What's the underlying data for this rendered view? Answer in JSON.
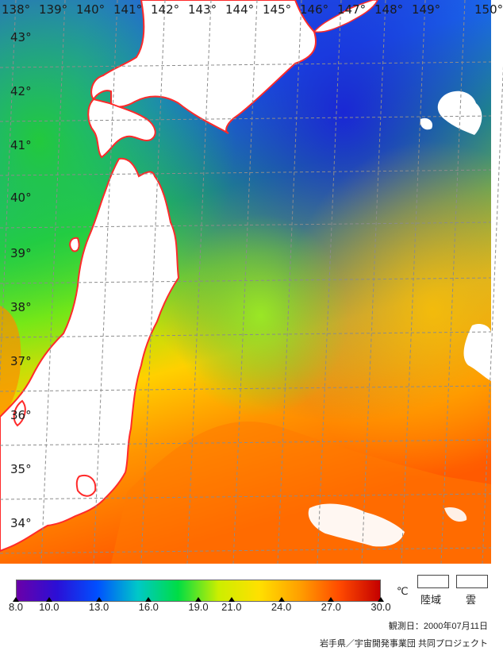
{
  "map": {
    "lon_labels": [
      "138°",
      "139°",
      "140°",
      "141°",
      "142°",
      "143°",
      "144°",
      "145°",
      "146°",
      "147°",
      "148°",
      "149°",
      "150°"
    ],
    "lat_labels": [
      "43°",
      "42°",
      "41°",
      "40°",
      "39°",
      "38°",
      "37°",
      "36°",
      "35°",
      "34°"
    ],
    "colors": {
      "coastline": "#ff2a2a",
      "grid": "#8c8c8c",
      "land": "#ffffff",
      "cloud": "#ffffff"
    }
  },
  "legend": {
    "ticks": [
      "8.0",
      "10.0",
      "13.0",
      "16.0",
      "19.0",
      "21.0",
      "24.0",
      "27.0",
      "30.0"
    ],
    "tick_values": [
      8,
      10,
      13,
      16,
      19,
      21,
      24,
      27,
      30
    ],
    "unit": "℃",
    "land_label": "陸域",
    "cloud_label": "雲",
    "colors": [
      "#6a00a8",
      "#2b0fd6",
      "#0050ff",
      "#00c8c8",
      "#00dd44",
      "#ccee00",
      "#ffe000",
      "#ffa000",
      "#ff4a00",
      "#c40000"
    ]
  },
  "observation_date": "観測日：2000年07月11日",
  "credit": "岩手県／宇宙開発事業団 共同プロジェクト"
}
